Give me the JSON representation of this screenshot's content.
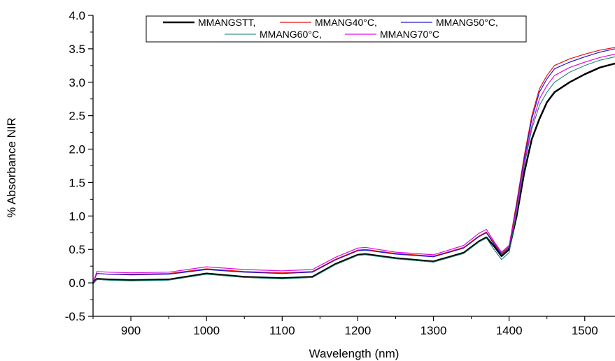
{
  "chart_data": {
    "type": "line",
    "xlabel": "Wavelength (nm)",
    "ylabel": "% Absorbance NIR",
    "xlim": [
      850,
      1540
    ],
    "ylim": [
      -0.5,
      4.0
    ],
    "x_ticks": [
      900,
      1000,
      1100,
      1200,
      1300,
      1400,
      1500
    ],
    "y_ticks": [
      -0.5,
      0.0,
      0.5,
      1.0,
      1.5,
      2.0,
      2.5,
      3.0,
      3.5,
      4.0
    ],
    "x_tick_labels": [
      "900",
      "1000",
      "1100",
      "1200",
      "1300",
      "1400",
      "1500"
    ],
    "y_tick_labels": [
      "-0.5",
      "0.0",
      "0.5",
      "1.0",
      "1.5",
      "2.0",
      "2.5",
      "3.0",
      "3.5",
      "4.0"
    ],
    "grid": false,
    "legend_position": "top-center",
    "x": [
      850,
      855,
      870,
      900,
      950,
      1000,
      1050,
      1100,
      1140,
      1170,
      1200,
      1210,
      1250,
      1300,
      1340,
      1360,
      1370,
      1380,
      1390,
      1400,
      1410,
      1420,
      1430,
      1440,
      1450,
      1460,
      1480,
      1500,
      1520,
      1540
    ],
    "series": [
      {
        "name": "MMANGSTT,",
        "color": "#000000",
        "width": 2.5,
        "values": [
          0.0,
          0.06,
          0.05,
          0.04,
          0.05,
          0.14,
          0.09,
          0.07,
          0.09,
          0.28,
          0.42,
          0.43,
          0.37,
          0.32,
          0.45,
          0.62,
          0.68,
          0.55,
          0.4,
          0.5,
          1.0,
          1.65,
          2.15,
          2.45,
          2.7,
          2.85,
          3.0,
          3.12,
          3.22,
          3.28
        ]
      },
      {
        "name": "MMANG40°C,",
        "color": "#e81010",
        "width": 1.2,
        "values": [
          0.0,
          0.14,
          0.13,
          0.13,
          0.14,
          0.21,
          0.17,
          0.15,
          0.17,
          0.35,
          0.49,
          0.5,
          0.44,
          0.4,
          0.53,
          0.7,
          0.76,
          0.6,
          0.45,
          0.55,
          1.2,
          1.9,
          2.5,
          2.9,
          3.1,
          3.25,
          3.35,
          3.42,
          3.48,
          3.52
        ]
      },
      {
        "name": "MMANG50°C,",
        "color": "#1a1ad0",
        "width": 1.2,
        "values": [
          0.0,
          0.14,
          0.13,
          0.12,
          0.13,
          0.2,
          0.16,
          0.14,
          0.16,
          0.34,
          0.48,
          0.49,
          0.43,
          0.39,
          0.52,
          0.69,
          0.75,
          0.58,
          0.43,
          0.53,
          1.15,
          1.85,
          2.45,
          2.85,
          3.05,
          3.2,
          3.3,
          3.38,
          3.45,
          3.5
        ]
      },
      {
        "name": "MMANG60°C,",
        "color": "#0a7a6a",
        "width": 1.0,
        "values": [
          0.0,
          0.05,
          0.04,
          0.03,
          0.04,
          0.13,
          0.08,
          0.06,
          0.08,
          0.27,
          0.41,
          0.42,
          0.36,
          0.31,
          0.44,
          0.61,
          0.67,
          0.5,
          0.35,
          0.45,
          1.05,
          1.75,
          2.3,
          2.65,
          2.85,
          3.0,
          3.15,
          3.25,
          3.33,
          3.38
        ]
      },
      {
        "name": "MMANG70°C",
        "color": "#e010e0",
        "width": 1.2,
        "values": [
          0.0,
          0.17,
          0.16,
          0.15,
          0.16,
          0.24,
          0.2,
          0.18,
          0.2,
          0.38,
          0.52,
          0.53,
          0.46,
          0.42,
          0.56,
          0.74,
          0.8,
          0.62,
          0.46,
          0.56,
          1.1,
          1.8,
          2.35,
          2.75,
          2.95,
          3.1,
          3.22,
          3.3,
          3.37,
          3.42
        ]
      }
    ]
  }
}
